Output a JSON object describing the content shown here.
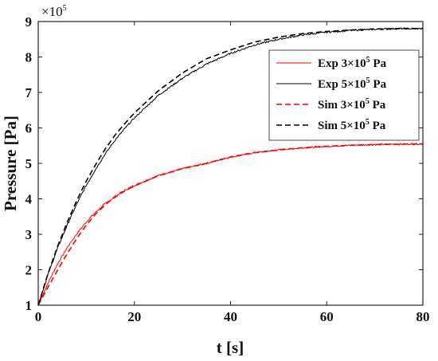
{
  "chart_data": {
    "type": "line",
    "xlabel": "t [s]",
    "ylabel": "Pressure [Pa]",
    "y_multiplier_label": "×10",
    "y_multiplier_exponent": "5",
    "xlim": [
      0,
      80
    ],
    "ylim": [
      1,
      9
    ],
    "xticks": [
      0,
      20,
      40,
      60,
      80
    ],
    "yticks": [
      1,
      2,
      3,
      4,
      5,
      6,
      7,
      8,
      9
    ],
    "grid": false,
    "legend_position": "top-right",
    "series": [
      {
        "name": "Exp 3×10",
        "name_exponent": "5",
        "name_suffix": " Pa",
        "color": "#ff0000",
        "dash": "solid",
        "noisy": true,
        "x": [
          0,
          2,
          4,
          6,
          8,
          10,
          12,
          14,
          16,
          18,
          20,
          25,
          30,
          35,
          40,
          45,
          50,
          55,
          60,
          65,
          70,
          75,
          80
        ],
        "y": [
          1.0,
          1.62,
          2.16,
          2.62,
          3.01,
          3.35,
          3.63,
          3.87,
          4.07,
          4.24,
          4.38,
          4.66,
          4.85,
          5.0,
          5.18,
          5.3,
          5.38,
          5.44,
          5.48,
          5.51,
          5.53,
          5.54,
          5.55
        ]
      },
      {
        "name": "Exp 5×10",
        "name_exponent": "5",
        "name_suffix": " Pa",
        "color": "#000000",
        "dash": "solid",
        "noisy": true,
        "x": [
          0,
          2,
          4,
          6,
          8,
          10,
          12,
          14,
          16,
          18,
          20,
          25,
          30,
          35,
          40,
          45,
          50,
          55,
          60,
          65,
          70,
          75,
          80
        ],
        "y": [
          1.0,
          1.85,
          2.6,
          3.25,
          3.85,
          4.38,
          4.85,
          5.28,
          5.66,
          5.98,
          6.28,
          6.92,
          7.4,
          7.8,
          8.1,
          8.34,
          8.5,
          8.62,
          8.7,
          8.75,
          8.78,
          8.8,
          8.8
        ]
      },
      {
        "name": "Sim 3×10",
        "name_exponent": "5",
        "name_suffix": " Pa",
        "color": "#ff0000",
        "dash": "dashed",
        "noisy": false,
        "x": [
          0,
          2,
          4,
          6,
          8,
          10,
          12,
          14,
          16,
          18,
          20,
          25,
          30,
          35,
          40,
          45,
          50,
          55,
          60,
          65,
          70,
          75,
          80
        ],
        "y": [
          1.0,
          1.5,
          1.98,
          2.45,
          2.88,
          3.26,
          3.58,
          3.84,
          4.05,
          4.22,
          4.36,
          4.65,
          4.85,
          5.0,
          5.18,
          5.3,
          5.38,
          5.44,
          5.48,
          5.51,
          5.53,
          5.54,
          5.55
        ]
      },
      {
        "name": "Sim 5×10",
        "name_exponent": "5",
        "name_suffix": " Pa",
        "color": "#000000",
        "dash": "dashed",
        "noisy": false,
        "x": [
          0,
          2,
          4,
          6,
          8,
          10,
          12,
          14,
          16,
          18,
          20,
          25,
          30,
          35,
          40,
          45,
          50,
          55,
          60,
          65,
          70,
          75,
          80
        ],
        "y": [
          1.0,
          1.88,
          2.65,
          3.33,
          3.95,
          4.5,
          4.98,
          5.42,
          5.8,
          6.12,
          6.42,
          7.05,
          7.55,
          7.95,
          8.2,
          8.42,
          8.56,
          8.66,
          8.72,
          8.76,
          8.79,
          8.8,
          8.8
        ]
      }
    ]
  }
}
